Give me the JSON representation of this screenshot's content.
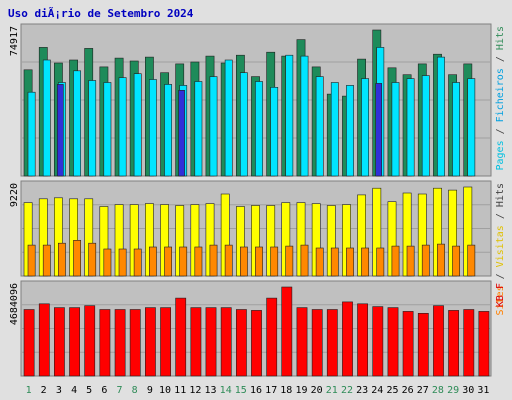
{
  "chart_data": {
    "type": "bar",
    "title": "Uso diÃ¡rio de Setembro 2024",
    "days": [
      "1",
      "2",
      "3",
      "4",
      "5",
      "6",
      "7",
      "8",
      "9",
      "10",
      "11",
      "12",
      "13",
      "14",
      "15",
      "16",
      "17",
      "18",
      "19",
      "20",
      "21",
      "22",
      "23",
      "24",
      "25",
      "26",
      "27",
      "28",
      "29",
      "30",
      "31"
    ],
    "weekend_days": [
      "1",
      "7",
      "8",
      "14",
      "15",
      "21",
      "22",
      "28",
      "29"
    ],
    "top_panel": {
      "max_label": "74917",
      "ymax": 74917,
      "right_labels": [
        {
          "text": "Pages",
          "color": "#00C0E0"
        },
        {
          "text": " / ",
          "color": "#404040"
        },
        {
          "text": "Ficheiros",
          "color": "#00A0E0"
        },
        {
          "text": " / ",
          "color": "#404040"
        },
        {
          "text": "Hits",
          "color": "#2E8B57"
        }
      ],
      "series": [
        {
          "name": "Hits",
          "color": "#1E8B5A",
          "values": [
            54500,
            66000,
            58000,
            59500,
            65500,
            56000,
            60500,
            59000,
            61000,
            53000,
            57500,
            58500,
            61500,
            58000,
            62000,
            51000,
            63500,
            61500,
            70000,
            56000,
            42000,
            41000,
            60000,
            74900,
            55500,
            52000,
            57500,
            62500,
            52000,
            57500,
            0
          ]
        },
        {
          "name": "Ficheiros",
          "color": "#00E5FF",
          "values": [
            43000,
            59500,
            48000,
            54000,
            49000,
            48000,
            50500,
            52500,
            49500,
            47000,
            46500,
            48500,
            51000,
            59500,
            53000,
            48500,
            45500,
            62000,
            61500,
            51000,
            48000,
            46500,
            50000,
            66000,
            48000,
            50000,
            51500,
            61000,
            48000,
            50000,
            0
          ]
        },
        {
          "name": "Pages",
          "color": "#3030D8",
          "values": [
            0,
            0,
            47000,
            0,
            0,
            0,
            0,
            0,
            0,
            0,
            44000,
            0,
            0,
            0,
            0,
            0,
            0,
            0,
            0,
            0,
            0,
            0,
            0,
            47500,
            0,
            0,
            0,
            0,
            0,
            0,
            0
          ]
        }
      ]
    },
    "middle_panel": {
      "max_label": "9220",
      "ymax": 9220,
      "right_labels": [
        {
          "text": "Sites",
          "color": "#FF8000"
        },
        {
          "text": " / ",
          "color": "#404040"
        },
        {
          "text": "Visitas",
          "color": "#E0C000"
        },
        {
          "text": " / ",
          "color": "#404040"
        },
        {
          "text": "Hits",
          "color": "#404040"
        }
      ],
      "series": [
        {
          "name": "Visitas",
          "color": "#FFFF00",
          "values": [
            7600,
            8000,
            8100,
            8000,
            8000,
            7200,
            7400,
            7400,
            7500,
            7400,
            7300,
            7400,
            7500,
            8500,
            7200,
            7300,
            7300,
            7600,
            7600,
            7500,
            7300,
            7400,
            8400,
            9100,
            7700,
            8600,
            8500,
            9100,
            8900,
            9220,
            0
          ]
        },
        {
          "name": "Sites",
          "color": "#FF8800",
          "values": [
            3200,
            3200,
            3400,
            3700,
            3400,
            2800,
            2800,
            2800,
            3000,
            3000,
            3000,
            3000,
            3200,
            3200,
            3000,
            3000,
            3000,
            3100,
            3200,
            2900,
            2900,
            2900,
            2900,
            2900,
            3100,
            3100,
            3200,
            3300,
            3100,
            3200,
            0
          ]
        }
      ]
    },
    "bottom_panel": {
      "max_label": "4684096",
      "ymax": 4684096,
      "right_labels": [
        {
          "text": "KB F",
          "color": "#E00000"
        }
      ],
      "series": [
        {
          "name": "KB F",
          "color": "#FF0000",
          "values": [
            3500000,
            3800000,
            3600000,
            3600000,
            3700000,
            3500000,
            3500000,
            3500000,
            3600000,
            3600000,
            4100000,
            3600000,
            3600000,
            3600000,
            3500000,
            3450000,
            4100000,
            4684096,
            3600000,
            3500000,
            3500000,
            3900000,
            3800000,
            3650000,
            3600000,
            3400000,
            3300000,
            3700000,
            3450000,
            3500000,
            3400000
          ]
        }
      ]
    },
    "colors": {
      "background": "#E0E0E0",
      "plot_background": "#C0C0C0",
      "title_color": "#0000C0",
      "weekend_color": "#2E8B57",
      "weekday_color": "#000000"
    }
  }
}
